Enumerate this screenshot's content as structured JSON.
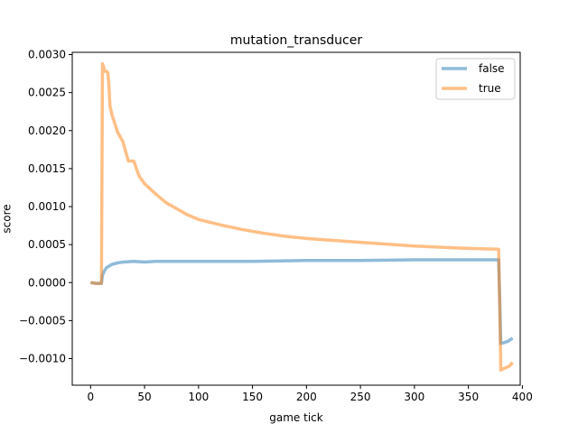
{
  "chart_data": {
    "type": "line",
    "title": "mutation_transducer",
    "xlabel": "game tick",
    "ylabel": "score",
    "xlim": [
      -17,
      398
    ],
    "ylim": [
      -0.00135,
      0.00303
    ],
    "xticks": [
      0,
      50,
      100,
      150,
      200,
      250,
      300,
      350,
      400
    ],
    "xtick_labels": [
      "0",
      "50",
      "100",
      "150",
      "200",
      "250",
      "300",
      "350",
      "400"
    ],
    "yticks": [
      -0.001,
      -0.0005,
      0.0,
      0.0005,
      0.001,
      0.0015,
      0.002,
      0.0025,
      0.003
    ],
    "ytick_labels": [
      "−0.0010",
      "−0.0005",
      "0.0000",
      "0.0005",
      "0.0010",
      "0.0015",
      "0.0020",
      "0.0025",
      "0.0030"
    ],
    "legend_position": "upper right",
    "series": [
      {
        "name": "false",
        "color": "#1f77b4",
        "x": [
          0,
          5,
          10,
          11,
          13,
          15,
          20,
          25,
          30,
          40,
          50,
          60,
          80,
          100,
          150,
          200,
          250,
          300,
          350,
          378,
          379,
          380,
          383,
          387,
          391
        ],
        "values": [
          0.0,
          -1e-05,
          -1e-05,
          0.0001,
          0.00016,
          0.0002,
          0.00024,
          0.00026,
          0.00027,
          0.00028,
          0.00027,
          0.00028,
          0.00028,
          0.00028,
          0.00028,
          0.00029,
          0.00029,
          0.0003,
          0.0003,
          0.0003,
          -0.0002,
          -0.0008,
          -0.00079,
          -0.00077,
          -0.00073
        ]
      },
      {
        "name": "true",
        "color": "#ff7f0e",
        "x": [
          0,
          5,
          10,
          11,
          12,
          13,
          15,
          16,
          17,
          18,
          20,
          25,
          30,
          35,
          40,
          45,
          50,
          60,
          70,
          80,
          90,
          100,
          120,
          140,
          160,
          180,
          200,
          220,
          250,
          300,
          350,
          378,
          379,
          380,
          383,
          388,
          391
        ],
        "values": [
          0.0,
          -1e-05,
          -1e-05,
          0.00288,
          0.00284,
          0.00278,
          0.00278,
          0.00276,
          0.0026,
          0.00232,
          0.0022,
          0.00198,
          0.00185,
          0.0016,
          0.0016,
          0.0014,
          0.0013,
          0.00117,
          0.00105,
          0.00097,
          0.00089,
          0.00083,
          0.00076,
          0.0007,
          0.00065,
          0.00061,
          0.00058,
          0.00056,
          0.00053,
          0.00048,
          0.00045,
          0.00044,
          -0.0003,
          -0.00115,
          -0.00113,
          -0.0011,
          -0.00105
        ]
      }
    ]
  }
}
